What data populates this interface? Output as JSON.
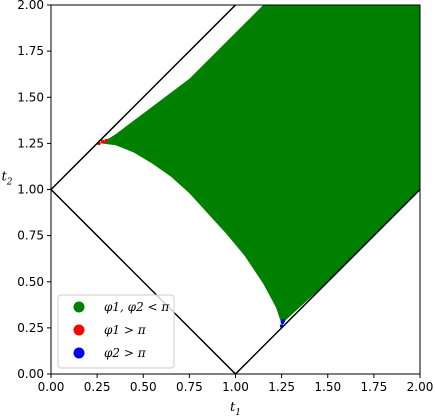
{
  "chart_data": {
    "type": "scatter",
    "xlabel": "t1",
    "ylabel": "t2",
    "xlim": [
      0,
      2
    ],
    "ylim": [
      0,
      2
    ],
    "x_ticks": [
      "0.00",
      "0.25",
      "0.50",
      "0.75",
      "1.00",
      "1.25",
      "1.50",
      "1.75",
      "2.00"
    ],
    "y_ticks": [
      "0.00",
      "0.25",
      "0.50",
      "0.75",
      "1.00",
      "1.25",
      "1.50",
      "1.75",
      "2.00"
    ],
    "grid": false,
    "legend_position": "bottom-left",
    "boundary_lines": [
      {
        "x": [
          0,
          1
        ],
        "y": [
          1,
          2
        ]
      },
      {
        "x": [
          0,
          1
        ],
        "y": [
          1,
          0
        ]
      },
      {
        "x": [
          1,
          2
        ],
        "y": [
          0,
          1
        ]
      }
    ],
    "series": [
      {
        "name": "φ1, φ2 < π",
        "color": "#008000",
        "region_outline": [
          [
            0.27,
            1.25
          ],
          [
            0.35,
            1.24
          ],
          [
            0.45,
            1.2
          ],
          [
            0.55,
            1.14
          ],
          [
            0.65,
            1.07
          ],
          [
            0.75,
            0.98
          ],
          [
            0.85,
            0.87
          ],
          [
            0.95,
            0.76
          ],
          [
            1.05,
            0.64
          ],
          [
            1.15,
            0.49
          ],
          [
            1.22,
            0.36
          ],
          [
            1.25,
            0.27
          ],
          [
            1.27,
            0.29
          ],
          [
            1.5,
            0.5
          ],
          [
            1.75,
            0.75
          ],
          [
            2.0,
            1.0
          ],
          [
            2.0,
            2.0
          ],
          [
            1.15,
            2.0
          ],
          [
            0.95,
            1.8
          ],
          [
            0.75,
            1.6
          ],
          [
            0.55,
            1.45
          ],
          [
            0.35,
            1.3
          ]
        ]
      },
      {
        "name": "φ1 > π",
        "color": "#ff0000",
        "points": [
          [
            0.26,
            1.25
          ],
          [
            0.28,
            1.26
          ],
          [
            0.3,
            1.265
          ]
        ]
      },
      {
        "name": "φ2 > π",
        "color": "#0000ff",
        "points": [
          [
            1.25,
            0.26
          ],
          [
            1.255,
            0.28
          ],
          [
            1.26,
            0.29
          ]
        ]
      }
    ]
  }
}
